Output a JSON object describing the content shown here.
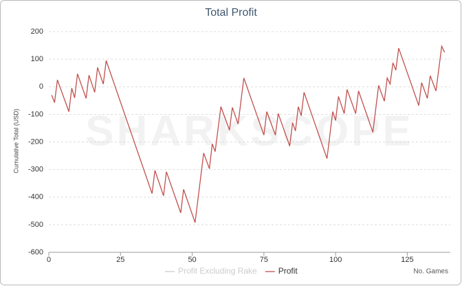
{
  "chart_data": {
    "type": "line",
    "title": "Total Profit",
    "y_label": "Cumulative Total (USD)",
    "x_label": "No. Games",
    "watermark": "SHARKSCOPE",
    "xlim": [
      0,
      140
    ],
    "xticks": [
      0,
      25,
      50,
      75,
      100,
      125
    ],
    "ylim": [
      -600,
      200
    ],
    "yticks": [
      -600,
      -500,
      -400,
      -300,
      -200,
      -100,
      0,
      100,
      200
    ],
    "grid": true,
    "legend": "bottom",
    "x": [
      1,
      2,
      3,
      7,
      8,
      9,
      10,
      13,
      14,
      16,
      17,
      19,
      20,
      36,
      37,
      40,
      41,
      46,
      47,
      51,
      54,
      56,
      57,
      58,
      60,
      63,
      64,
      66,
      68,
      75,
      76,
      79,
      80,
      84,
      85,
      86,
      87,
      88,
      89,
      97,
      99,
      100,
      101,
      103,
      104,
      107,
      108,
      113,
      115,
      117,
      118,
      119,
      120,
      121,
      122,
      129,
      130,
      132,
      133,
      135,
      137,
      138
    ],
    "series": [
      {
        "name": "Profit Excluding Rake",
        "color": "#cccccc",
        "visible": false
      },
      {
        "name": "Profit",
        "color": "#c0504d",
        "visible": true,
        "values": [
          -30,
          -57,
          25,
          -90,
          -5,
          -40,
          47,
          -42,
          42,
          -20,
          70,
          10,
          95,
          -387,
          -303,
          -395,
          -308,
          -457,
          -372,
          -492,
          -240,
          -297,
          -207,
          -235,
          -72,
          -157,
          -75,
          -135,
          32,
          -175,
          -90,
          -175,
          -97,
          -215,
          -130,
          -160,
          -72,
          -105,
          -20,
          -260,
          -90,
          -122,
          -35,
          -97,
          -10,
          -97,
          -15,
          -165,
          5,
          -52,
          32,
          10,
          87,
          60,
          140,
          -68,
          15,
          -42,
          40,
          -15,
          147,
          125
        ]
      }
    ]
  }
}
